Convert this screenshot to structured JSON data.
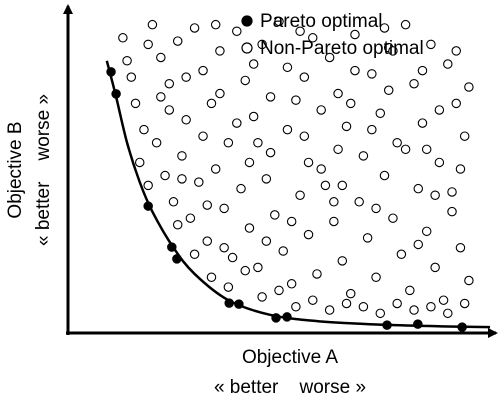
{
  "chart_data": {
    "type": "scatter",
    "x_label": "Objective A",
    "x_sublabel": "« better    worse »",
    "y_label": "Objective B",
    "y_sublabel": "« better    worse »",
    "xlim": [
      0,
      100
    ],
    "ylim": [
      0,
      100
    ],
    "legend": "upper right",
    "series": [
      {
        "name": "Pareto optimal",
        "color": "#000000",
        "marker": "filled",
        "x": [
          10.2,
          11.4,
          19.0,
          24.6,
          25.8,
          38.2,
          40.5,
          49.3,
          51.9,
          75.6,
          82.9,
          93.4
        ],
        "values": [
          79.6,
          72.9,
          38.7,
          26.2,
          22.6,
          9.1,
          8.8,
          4.6,
          4.9,
          2.4,
          2.7,
          1.8
        ]
      },
      {
        "name": "Non-Pareto optimal",
        "color": "#000000",
        "marker": "open",
        "x": [
          13,
          14,
          16,
          18,
          20,
          22,
          24,
          26,
          28,
          30,
          32,
          34,
          36,
          38,
          40,
          42,
          44,
          46,
          48,
          50,
          52,
          54,
          56,
          58,
          60,
          62,
          64,
          66,
          68,
          70,
          72,
          74,
          76,
          78,
          80,
          82,
          84,
          86,
          88,
          90,
          92,
          94,
          91,
          17,
          19,
          21,
          23,
          25,
          27,
          29,
          31,
          33,
          35,
          37,
          39,
          41,
          43,
          45,
          47,
          49,
          51,
          53,
          55,
          57,
          59,
          61,
          63,
          65,
          67,
          69,
          71,
          73,
          75,
          77,
          79,
          81,
          83,
          85,
          87,
          89,
          91,
          93,
          95,
          24,
          28,
          32,
          36,
          40,
          44,
          48,
          52,
          56,
          60,
          64,
          68,
          72,
          76,
          80,
          84,
          88,
          92,
          26,
          30,
          34,
          38,
          42,
          46,
          50,
          54,
          58,
          62,
          66,
          70,
          74,
          78,
          82,
          86,
          90,
          94,
          15,
          19,
          22,
          35,
          45,
          55,
          65,
          75,
          85,
          95,
          57,
          63,
          33,
          43,
          53,
          73,
          83,
          93,
          47,
          37,
          27,
          67,
          77,
          87
        ],
        "values": [
          90,
          83,
          70,
          62,
          94,
          84,
          76,
          89,
          65,
          93,
          80,
          70,
          86,
          58,
          92,
          77,
          66,
          88,
          55,
          95,
          81,
          71,
          60,
          90,
          50,
          84,
          73,
          63,
          91,
          54,
          79,
          67,
          87,
          58,
          94,
          76,
          64,
          88,
          52,
          82,
          70,
          60,
          43,
          52,
          45,
          58,
          48,
          40,
          54,
          35,
          46,
          28,
          50,
          38,
          23,
          44,
          32,
          20,
          47,
          36,
          25,
          15,
          42,
          30,
          18,
          45,
          34,
          22,
          12,
          40,
          29,
          17,
          48,
          35,
          24,
          13,
          44,
          31,
          20,
          10,
          37,
          26,
          16,
          68,
          78,
          60,
          73,
          64,
          82,
          72,
          62,
          78,
          68,
          56,
          80,
          62,
          74,
          56,
          80,
          68,
          86,
          33,
          24,
          17,
          14,
          19,
          11,
          13,
          8,
          10,
          7,
          9,
          8,
          6,
          9,
          7,
          8,
          6,
          9,
          78,
          88,
          72,
          94,
          58,
          92,
          45,
          93,
          56,
          75,
          52,
          40,
          39,
          52,
          34,
          38,
          27,
          50,
          28,
          26,
          47,
          70,
          86,
          42
        ]
      }
    ],
    "curve": {
      "color": "#000000",
      "x": [
        9.2,
        11.4,
        14,
        17,
        20,
        25,
        30,
        38,
        48,
        60,
        75,
        90,
        100
      ],
      "values": [
        83,
        72,
        58,
        46,
        37,
        26,
        18,
        10,
        5.5,
        3.5,
        2.5,
        2,
        1.8
      ]
    }
  }
}
